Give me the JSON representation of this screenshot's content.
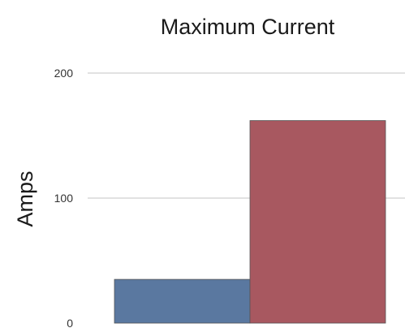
{
  "chart_data": {
    "type": "bar",
    "title": "Maximum Current",
    "xlabel": "",
    "ylabel": "Amps",
    "categories": [
      "",
      ""
    ],
    "values": [
      35,
      162
    ],
    "colors": [
      "#5a78a0",
      "#a85860"
    ],
    "ylim": [
      0,
      200
    ],
    "yticks": [
      "0",
      "100",
      "200"
    ],
    "grid": true,
    "legend": "none"
  }
}
